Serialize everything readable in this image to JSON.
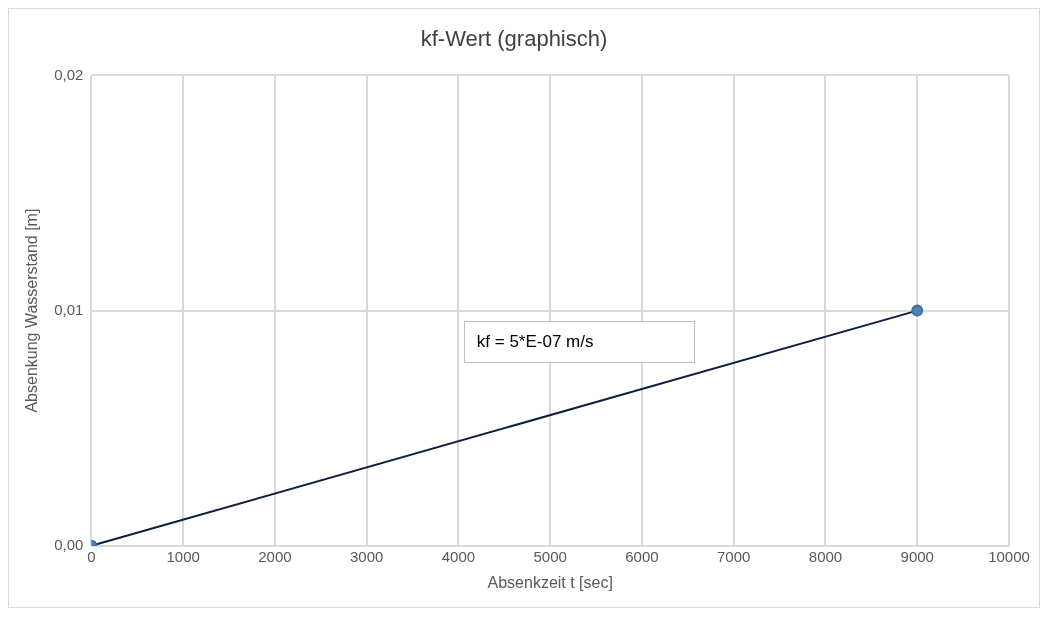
{
  "chart_data": {
    "type": "line",
    "title": "kf-Wert (graphisch)",
    "xlabel": "Absenkzeit t [sec]",
    "ylabel": "Absenkung Wasserstand [m]",
    "x": [
      0,
      9000
    ],
    "series": [
      {
        "color": "#0d1f3c",
        "values": [
          0,
          0.01
        ]
      }
    ],
    "xlim": [
      0,
      10000
    ],
    "xticks": [
      0,
      1000,
      2000,
      3000,
      4000,
      5000,
      6000,
      7000,
      8000,
      9000,
      10000
    ],
    "ylim": [
      0,
      0.02
    ],
    "yticks": [
      {
        "value": 0,
        "label": "0,00"
      },
      {
        "value": 0.01,
        "label": "0,01"
      },
      {
        "value": 0.02,
        "label": "0,02"
      }
    ],
    "grid": true,
    "legend": false,
    "marker": "circle",
    "line_style": "solid",
    "annotations": [
      "kf = 5*E-07 m/s"
    ]
  }
}
